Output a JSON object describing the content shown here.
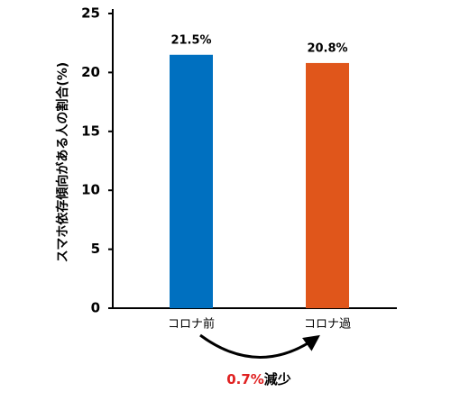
{
  "chart_data": {
    "type": "bar",
    "ylabel": "スマホ依存傾向がある人の割合(%)",
    "categories": [
      "コロナ前",
      "コロナ過"
    ],
    "values": [
      21.5,
      20.8
    ],
    "value_labels": [
      "21.5%",
      "20.8%"
    ],
    "colors": [
      "#0070c0",
      "#e0561b"
    ],
    "ylim": [
      0,
      25
    ],
    "yticks": [
      0,
      5,
      10,
      15,
      20,
      25
    ],
    "annotation": {
      "highlight": "0.7%",
      "text": "減少",
      "highlight_color": "#e02020"
    }
  }
}
